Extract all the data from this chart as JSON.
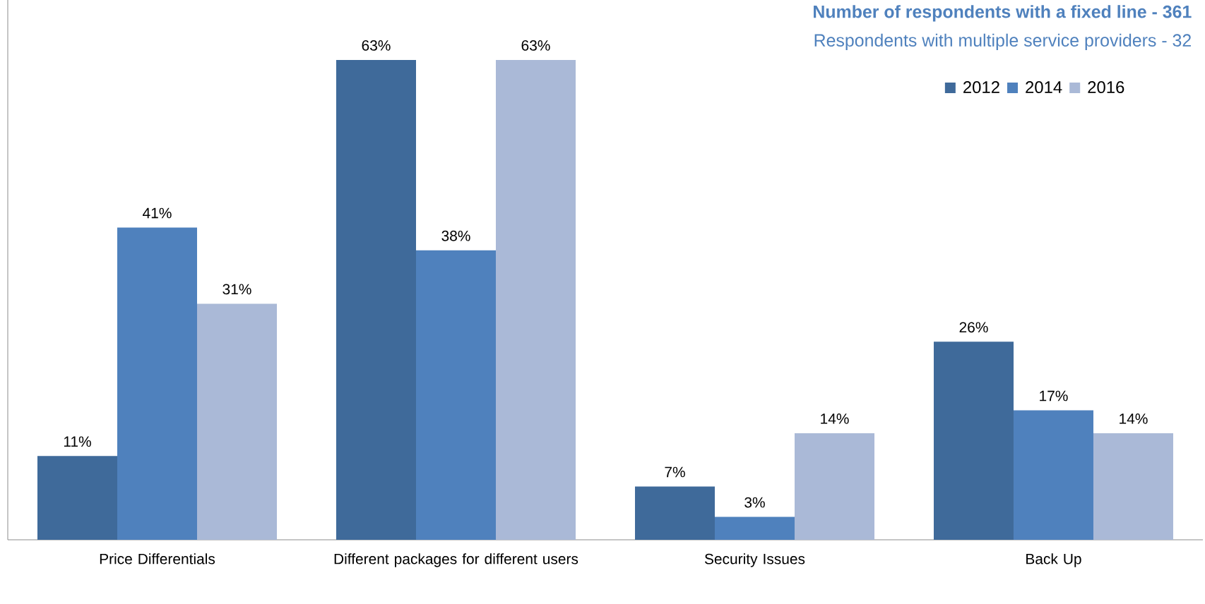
{
  "chart_data": {
    "type": "bar",
    "title": "Number of respondents with a fixed line - 361",
    "subtitle": "Respondents with multiple service providers - 32",
    "categories": [
      "Price Differentials",
      "Different packages for different users",
      "Security Issues",
      "Back Up"
    ],
    "series": [
      {
        "name": "2012",
        "color": "#3f6a9a",
        "values": [
          11,
          63,
          7,
          26
        ],
        "value_labels": [
          "11%",
          "63%",
          "7%",
          "26%"
        ]
      },
      {
        "name": "2014",
        "color": "#4f81bd",
        "values": [
          41,
          38,
          3,
          17
        ],
        "value_labels": [
          "41%",
          "38%",
          "3%",
          "17%"
        ]
      },
      {
        "name": "2016",
        "color": "#aab9d7",
        "values": [
          31,
          63,
          14,
          14
        ],
        "value_labels": [
          "31%",
          "63%",
          "14%",
          "14%"
        ]
      }
    ],
    "legend": "top right",
    "tick_labels": "x"
  }
}
